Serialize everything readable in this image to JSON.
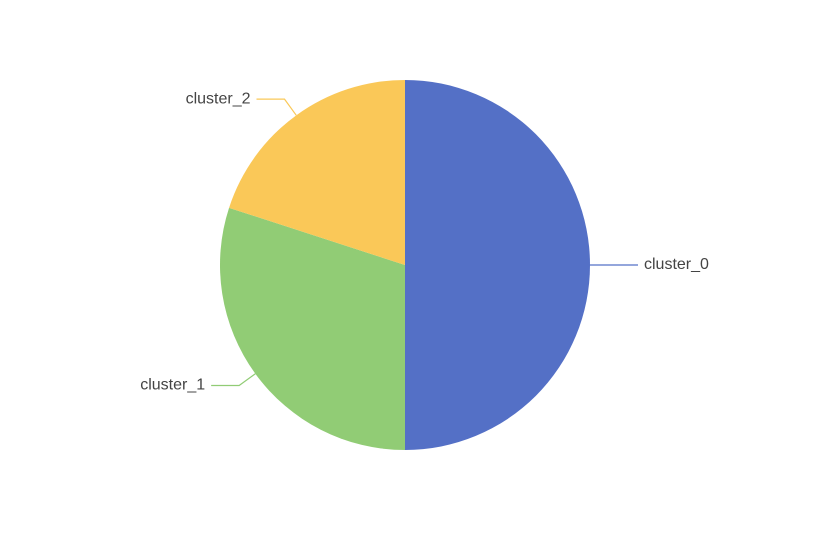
{
  "chart_data": {
    "type": "pie",
    "slices": [
      {
        "label": "cluster_0",
        "value": 50,
        "color": "#5470c6"
      },
      {
        "label": "cluster_1",
        "value": 30,
        "color": "#91cc75"
      },
      {
        "label": "cluster_2",
        "value": 20,
        "color": "#fac858"
      }
    ],
    "start_angle_deg": 0,
    "direction": "clockwise",
    "legend": "none",
    "labels": "outside-with-leader-lines"
  }
}
